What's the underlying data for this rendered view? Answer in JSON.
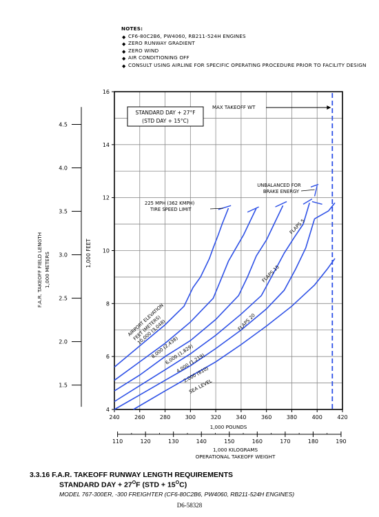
{
  "notes": {
    "header": "NOTES:",
    "items": [
      "CF6-80C2B6, PW4060, RB211-524H ENGINES",
      "ZERO RUNWAY GRADIENT",
      "ZERO WIND",
      "AIR CONDITIONING OFF",
      "CONSULT USING AIRLINE FOR SPECIFIC OPERATING PROCEDURE PRIOR TO FACILITY DESIGN"
    ]
  },
  "caption": {
    "title": "3.3.16  F.A.R. TAKEOFF RUNWAY LENGTH REQUIREMENTS",
    "subtitle_pre": "STANDARD DAY + 27",
    "subtitle_deg1": "O",
    "subtitle_mid": "F (STD +  15",
    "subtitle_deg2": "O",
    "subtitle_post": "C)",
    "model": "MODEL  767-300ER, -300 FREIGHTER (CF6-80C2B6, PW4060, RB211-524H  ENGINES)"
  },
  "doc_number": "D6-58328",
  "chart_data": {
    "type": "line",
    "condition_box": [
      "STANDARD DAY + 27°F",
      "(STD DAY + 15°C)"
    ],
    "xlabel_primary": "1,000 POUNDS",
    "xlabel_secondary_1": "1,000 KILOGRAMS",
    "xlabel_secondary_2": "OPERATIONAL TAKEOFF WEIGHT",
    "ylabel_feet": "1,000 FEET",
    "ylabel_meters_1": "F.A.R. TAKEOFF FIELD LENGTH",
    "ylabel_meters_2": "1,000 METERS",
    "xlim_lb": [
      240,
      420
    ],
    "ylim_ft": [
      4,
      16
    ],
    "x_ticks_lb": [
      240,
      260,
      280,
      300,
      320,
      340,
      360,
      380,
      400,
      420
    ],
    "x_tick_labels_lb": [
      "240",
      "260",
      "280",
      "300",
      "320",
      "340",
      "360",
      "380",
      "400",
      "420"
    ],
    "y_ticks_ft": [
      4,
      6,
      8,
      10,
      12,
      14,
      16
    ],
    "y_tick_labels_ft": [
      "4",
      "6",
      "8",
      "10",
      "12",
      "14",
      "16"
    ],
    "kg_ticks": [
      110,
      120,
      130,
      140,
      150,
      160,
      170,
      180,
      190
    ],
    "kg_tick_labels": [
      "110",
      "120",
      "130",
      "140",
      "150",
      "160",
      "170",
      "180",
      "190"
    ],
    "meter_ticks": [
      1.5,
      2.0,
      2.5,
      3.0,
      3.5,
      4.0,
      4.5
    ],
    "meter_tick_labels": [
      "1.5",
      "2.0",
      "2.5",
      "3.0",
      "3.5",
      "4.0",
      "4.5"
    ],
    "max_takeoff_wt_lb": 412,
    "annotations": {
      "max_takeoff": "MAX TAKEOFF WT",
      "tire_speed_1": "225 MPH (362 KMPH)",
      "tire_speed_2": "TIRE SPEED LIMIT",
      "unbalanced_1": "UNBALANCED FOR",
      "unbalanced_2": "BRAKE ENERGY",
      "flaps_5": "FLAPS 5",
      "flaps_15": "FLAPS 15",
      "flaps_20": "FLAPS 20",
      "elev_header_1": "AIRPORT ELEVATION",
      "elev_header_2": "FEET (METERS)"
    },
    "series": [
      {
        "name": "10,000 (3,048)",
        "x": [
          240,
          260,
          280,
          295,
          302,
          308,
          315,
          318,
          322,
          325,
          330
        ],
        "y": [
          5.6,
          6.4,
          7.2,
          7.9,
          8.6,
          9.0,
          9.7,
          10.1,
          10.6,
          11.0,
          11.6
        ]
      },
      {
        "name": "8,000 (2,438)",
        "x": [
          240,
          260,
          280,
          300,
          318,
          324,
          330,
          336,
          342,
          347,
          352
        ],
        "y": [
          5.1,
          5.8,
          6.5,
          7.3,
          8.2,
          8.9,
          9.6,
          10.1,
          10.6,
          11.1,
          11.6
        ]
      },
      {
        "name": "6,000 (1,829)",
        "x": [
          240,
          260,
          280,
          300,
          320,
          338,
          345,
          352,
          360,
          366,
          373
        ],
        "y": [
          4.7,
          5.3,
          6.0,
          6.6,
          7.4,
          8.3,
          9.0,
          9.8,
          10.4,
          11.0,
          11.7
        ]
      },
      {
        "name": "4,000 (1,219)",
        "x": [
          240,
          260,
          280,
          300,
          320,
          340,
          356,
          365,
          374,
          382,
          389,
          394
        ],
        "y": [
          4.3,
          4.9,
          5.5,
          6.1,
          6.8,
          7.6,
          8.3,
          9.1,
          9.9,
          10.5,
          11.0,
          11.8
        ]
      },
      {
        "name": "2,000 (610)",
        "x": [
          240,
          260,
          280,
          300,
          320,
          340,
          360,
          374,
          383,
          391,
          398
        ],
        "y": [
          4.0,
          4.55,
          5.1,
          5.65,
          6.3,
          7.0,
          7.8,
          8.5,
          9.3,
          10.1,
          11.2
        ]
      },
      {
        "name": "SEA LEVEL",
        "x": [
          255,
          280,
          300,
          320,
          340,
          360,
          380,
          398,
          408,
          414
        ],
        "y": [
          4.0,
          4.7,
          5.25,
          5.8,
          6.45,
          7.15,
          7.9,
          8.7,
          9.3,
          9.7
        ]
      }
    ],
    "flaps5_from_prev": [
      {
        "x": 398,
        "y": 11.2
      },
      {
        "x": 409,
        "y": 11.5
      },
      {
        "x": 414,
        "y": 11.8
      }
    ],
    "grid": true
  }
}
